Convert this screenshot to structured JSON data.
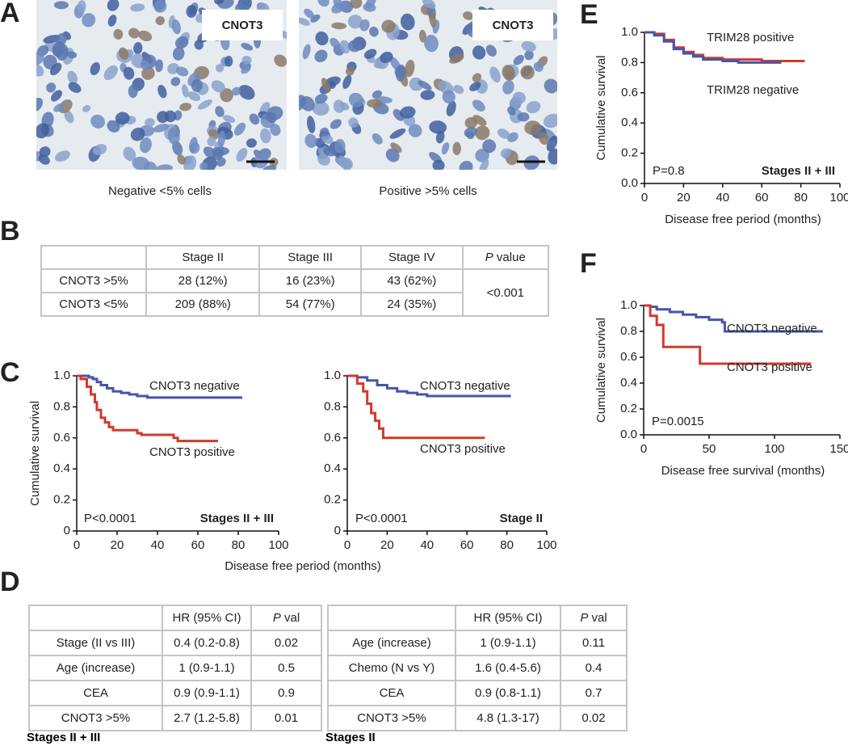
{
  "panel_letters": [
    "A",
    "B",
    "C",
    "D",
    "E",
    "F"
  ],
  "panel_a": {
    "images": [
      {
        "label": "CNOT3",
        "caption": "Negative <5% cells"
      },
      {
        "label": "CNOT3",
        "caption": "Positive >5% cells"
      }
    ]
  },
  "table_b": {
    "header": [
      "Stage II",
      "Stage III",
      "Stage IV",
      "P value"
    ],
    "rows": [
      [
        "CNOT3 >5%",
        "28 (12%)",
        "16 (23%)",
        "43 (62%)",
        "<0.001"
      ],
      [
        "CNOT3 <5%",
        "209 (88%)",
        "54 (77%)",
        "24 (35%)"
      ]
    ]
  },
  "tables_d": [
    {
      "header": [
        "HR (95% CI)",
        "P val"
      ],
      "rows": [
        [
          "Stage (II vs III)",
          "0.4 (0.2-0.8)",
          "0.02"
        ],
        [
          "Age (increase)",
          "1 (0.9-1.1)",
          "0.5"
        ],
        [
          "CEA",
          "0.9 (0.9-1.1)",
          "0.9"
        ],
        [
          "CNOT3 >5%",
          "2.7 (1.2-5.8)",
          "0.01"
        ]
      ],
      "caption": "Stages II + III"
    },
    {
      "header": [
        "HR (95% CI)",
        "P val"
      ],
      "rows": [
        [
          "Age (increase)",
          "1 (0.9-1.1)",
          "0.11"
        ],
        [
          "Chemo (N vs Y)",
          "1.6 (0.4-5.6)",
          "0.4"
        ],
        [
          "CEA",
          "0.9 (0.8-1.1)",
          "0.7"
        ],
        [
          "CNOT3 >5%",
          "4.8 (1.3-17)",
          "0.02"
        ]
      ],
      "caption": "Stages II"
    }
  ],
  "chart_data": [
    {
      "type": "line",
      "step": true,
      "ylabel": "Cumulative survival",
      "xlabel": "Disease free period (months)",
      "xlim": [
        0,
        100
      ],
      "xticks": [
        0,
        20,
        40,
        60,
        80,
        100
      ],
      "ylim": [
        0,
        1
      ],
      "yticks": [
        0,
        0.2,
        0.4,
        0.6,
        0.8,
        {
          "value": 1,
          "label": "1.0"
        }
      ],
      "annotations": [
        "P<0.0001",
        "Stages II + III"
      ],
      "series": [
        {
          "name": "CNOT3 negative",
          "color": "#4556a8",
          "x": [
            0,
            3,
            6,
            8,
            10,
            12,
            15,
            18,
            22,
            26,
            30,
            35,
            40,
            50,
            60,
            70,
            82
          ],
          "values": [
            1,
            1,
            0.99,
            0.98,
            0.96,
            0.94,
            0.92,
            0.9,
            0.89,
            0.88,
            0.87,
            0.86,
            0.86,
            0.86,
            0.86,
            0.86,
            0.86
          ]
        },
        {
          "name": "CNOT3 positive",
          "color": "#d03a2e",
          "x": [
            0,
            2,
            5,
            7,
            9,
            10,
            12,
            14,
            16,
            18,
            20,
            30,
            32,
            45,
            48,
            50,
            70
          ],
          "values": [
            1,
            0.98,
            0.93,
            0.88,
            0.83,
            0.78,
            0.73,
            0.7,
            0.67,
            0.65,
            0.65,
            0.63,
            0.62,
            0.62,
            0.6,
            0.58,
            0.58
          ]
        }
      ]
    },
    {
      "type": "line",
      "step": true,
      "xlim": [
        0,
        100
      ],
      "xticks": [
        0,
        20,
        40,
        60,
        80,
        100
      ],
      "ylim": [
        0,
        1
      ],
      "yticks": [
        0,
        0.2,
        0.4,
        0.6,
        0.8,
        {
          "value": 1,
          "label": "1.0"
        }
      ],
      "annotations": [
        "P<0.0001",
        "Stage II"
      ],
      "series": [
        {
          "name": "CNOT3 negative",
          "color": "#4556a8",
          "x": [
            0,
            5,
            10,
            15,
            20,
            25,
            30,
            35,
            40,
            60,
            82
          ],
          "values": [
            1,
            0.99,
            0.97,
            0.94,
            0.92,
            0.9,
            0.89,
            0.88,
            0.87,
            0.87,
            0.87
          ]
        },
        {
          "name": "CNOT3 positive",
          "color": "#d03a2e",
          "x": [
            0,
            5,
            8,
            10,
            12,
            14,
            16,
            18,
            20,
            69
          ],
          "values": [
            1,
            0.95,
            0.9,
            0.82,
            0.76,
            0.71,
            0.66,
            0.6,
            0.6,
            0.6
          ]
        }
      ]
    },
    {
      "type": "line",
      "step": true,
      "ylabel": "Cumulative survival",
      "xlabel": "Disease free period (months)",
      "xlim": [
        0,
        100
      ],
      "xticks": [
        0,
        20,
        40,
        60,
        80,
        100
      ],
      "ylim": [
        0,
        1
      ],
      "yticks": [
        {
          "value": 0,
          "label": "0.0"
        },
        0.2,
        0.4,
        0.6,
        0.8,
        {
          "value": 1,
          "label": "1.0"
        }
      ],
      "annotations": [
        "P=0.8",
        "Stages II + III"
      ],
      "series": [
        {
          "name": "TRIM28 positive",
          "color": "#d03a2e",
          "x": [
            0,
            5,
            10,
            15,
            20,
            25,
            30,
            40,
            50,
            60,
            82
          ],
          "values": [
            1,
            0.99,
            0.95,
            0.9,
            0.87,
            0.85,
            0.83,
            0.82,
            0.82,
            0.81,
            0.81
          ]
        },
        {
          "name": "TRIM28 negative",
          "color": "#4556a8",
          "x": [
            0,
            5,
            10,
            15,
            20,
            25,
            30,
            40,
            48,
            70
          ],
          "values": [
            1,
            0.98,
            0.94,
            0.89,
            0.86,
            0.84,
            0.82,
            0.81,
            0.8,
            0.8
          ]
        }
      ]
    },
    {
      "type": "line",
      "step": true,
      "ylabel": "Cumulative survival",
      "xlabel": "Disease free survival (months)",
      "xlim": [
        0,
        150
      ],
      "xticks": [
        0,
        50,
        100,
        150
      ],
      "ylim": [
        0,
        1
      ],
      "yticks": [
        {
          "value": 0,
          "label": "0.0"
        },
        0.2,
        0.4,
        0.6,
        0.8,
        {
          "value": 1,
          "label": "1.0"
        }
      ],
      "annotations": [
        "P=0.0015"
      ],
      "series": [
        {
          "name": "CNOT3 negative",
          "color": "#4556a8",
          "x": [
            0,
            5,
            10,
            20,
            30,
            40,
            50,
            60,
            62,
            100,
            137
          ],
          "values": [
            1,
            0.99,
            0.97,
            0.95,
            0.93,
            0.91,
            0.89,
            0.87,
            0.8,
            0.8,
            0.8
          ]
        },
        {
          "name": "CNOT3 positive",
          "color": "#d03a2e",
          "x": [
            0,
            5,
            10,
            15,
            40,
            43,
            128
          ],
          "values": [
            1,
            0.92,
            0.85,
            0.68,
            0.68,
            0.55,
            0.55
          ]
        }
      ]
    }
  ]
}
